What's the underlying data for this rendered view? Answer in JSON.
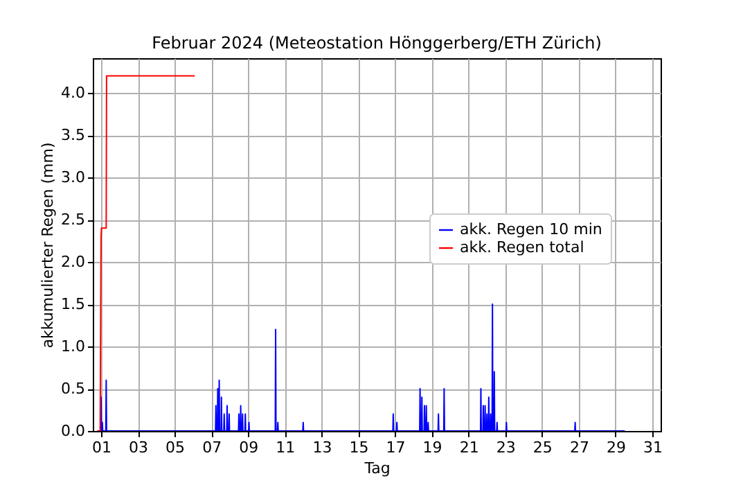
{
  "chart_data": {
    "type": "line",
    "title": "Februar 2024  (Meteostation Hönggerberg/ETH Zürich)",
    "xlabel": "Tag",
    "ylabel": "akkumulierter Regen (mm)",
    "xlim": [
      0.55,
      31.45
    ],
    "ylim": [
      0,
      4.41
    ],
    "xticks": [
      {
        "value": 1,
        "label": "01"
      },
      {
        "value": 3,
        "label": "03"
      },
      {
        "value": 5,
        "label": "05"
      },
      {
        "value": 7,
        "label": "07"
      },
      {
        "value": 9,
        "label": "09"
      },
      {
        "value": 11,
        "label": "11"
      },
      {
        "value": 13,
        "label": "13"
      },
      {
        "value": 15,
        "label": "15"
      },
      {
        "value": 17,
        "label": "17"
      },
      {
        "value": 19,
        "label": "19"
      },
      {
        "value": 21,
        "label": "21"
      },
      {
        "value": 23,
        "label": "23"
      },
      {
        "value": 25,
        "label": "25"
      },
      {
        "value": 27,
        "label": "27"
      },
      {
        "value": 29,
        "label": "29"
      },
      {
        "value": 31,
        "label": "31"
      }
    ],
    "yticks": [
      {
        "value": 0,
        "label": "0.0"
      },
      {
        "value": 0.5,
        "label": "0.5"
      },
      {
        "value": 1,
        "label": "1.0"
      },
      {
        "value": 1.5,
        "label": "1.5"
      },
      {
        "value": 2,
        "label": "2.0"
      },
      {
        "value": 2.5,
        "label": "2.5"
      },
      {
        "value": 3,
        "label": "3.0"
      },
      {
        "value": 3.5,
        "label": "3.5"
      },
      {
        "value": 4,
        "label": "4.0"
      }
    ],
    "grid": true,
    "legend": "center right",
    "line_style": "solid",
    "marker": "none",
    "series": [
      {
        "name": "akk. Regen 10 min",
        "color": "#0000ff",
        "x": [
          0.8,
          0.98,
          1.0,
          1.02,
          1.05,
          1.07,
          1.09,
          1.26,
          1.28,
          1.3,
          7.23,
          7.25,
          7.27,
          7.33,
          7.35,
          7.37,
          7.41,
          7.43,
          7.45,
          7.53,
          7.55,
          7.57,
          7.68,
          7.7,
          7.72,
          7.84,
          7.86,
          7.88,
          7.95,
          7.97,
          7.99,
          8.48,
          8.5,
          8.52,
          8.58,
          8.6,
          8.62,
          8.68,
          8.7,
          8.72,
          8.83,
          8.85,
          8.87,
          9.03,
          9.05,
          9.07,
          10.48,
          10.5,
          10.52,
          10.6,
          10.62,
          10.64,
          11.98,
          12.0,
          12.02,
          16.88,
          16.9,
          16.92,
          17.08,
          17.1,
          17.12,
          18.34,
          18.36,
          18.38,
          18.44,
          18.46,
          18.48,
          18.58,
          18.6,
          18.62,
          18.68,
          18.7,
          18.72,
          18.78,
          18.8,
          18.82,
          19.34,
          19.36,
          19.38,
          19.65,
          19.67,
          19.69,
          21.65,
          21.67,
          21.69,
          21.78,
          21.8,
          21.82,
          21.88,
          21.9,
          21.92,
          21.98,
          22.0,
          22.02,
          22.08,
          22.1,
          22.12,
          22.18,
          22.2,
          22.22,
          22.28,
          22.3,
          22.32,
          22.38,
          22.4,
          22.42,
          22.53,
          22.55,
          22.57,
          23.04,
          23.06,
          23.08,
          26.78,
          26.8,
          26.82,
          29.5
        ],
        "values": [
          0,
          0,
          0.4,
          0,
          0,
          0.1,
          0,
          0,
          0.6,
          0,
          0,
          0.3,
          0,
          0,
          0.5,
          0,
          0,
          0.6,
          0,
          0,
          0.4,
          0,
          0,
          0.2,
          0,
          0,
          0.3,
          0,
          0,
          0.2,
          0,
          0,
          0.2,
          0,
          0,
          0.3,
          0,
          0,
          0.2,
          0,
          0,
          0.2,
          0,
          0,
          0.1,
          0,
          0,
          1.2,
          0,
          0,
          0.1,
          0,
          0,
          0.1,
          0,
          0,
          0.2,
          0,
          0,
          0.1,
          0,
          0,
          0.5,
          0,
          0,
          0.4,
          0,
          0,
          0.3,
          0,
          0,
          0.3,
          0,
          0,
          0.1,
          0,
          0,
          0.2,
          0,
          0,
          0.5,
          0,
          0,
          0.5,
          0,
          0,
          0.3,
          0,
          0,
          0.3,
          0,
          0,
          0.2,
          0,
          0,
          0.4,
          0,
          0,
          0.2,
          0,
          0,
          1.5,
          0,
          0,
          0.7,
          0,
          0,
          0.1,
          0,
          0,
          0.1,
          0,
          0,
          0.1,
          0,
          0
        ]
      },
      {
        "name": "akk. Regen total",
        "color": "#ff0000",
        "x": [
          0.8,
          0.95,
          1.0,
          1.02,
          1.28,
          1.3,
          6.1
        ],
        "values": [
          0,
          0,
          2.3,
          2.4,
          2.4,
          4.2,
          4.2
        ]
      }
    ]
  }
}
